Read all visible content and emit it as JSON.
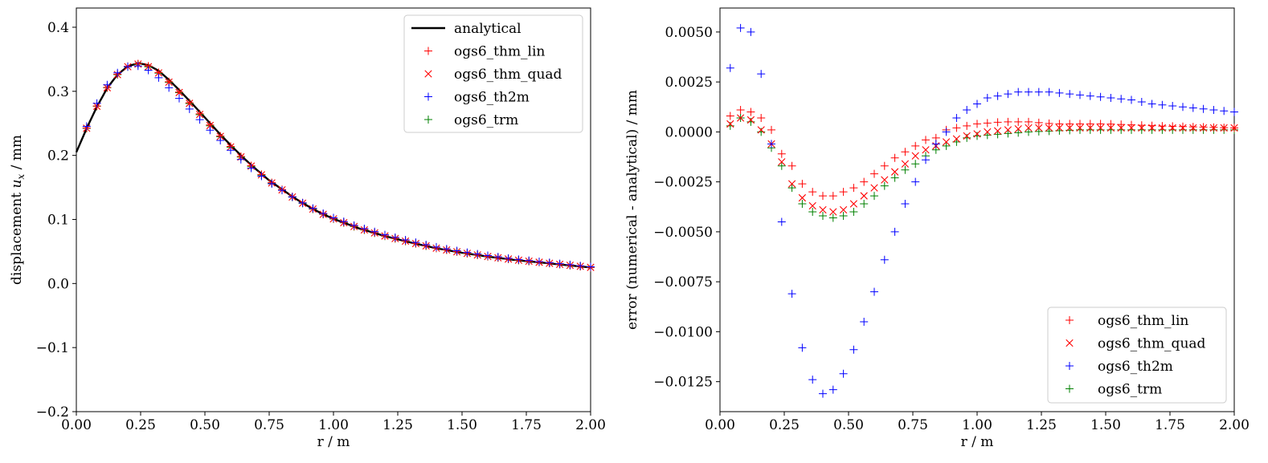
{
  "chart_data": [
    {
      "type": "scatter",
      "xlabel": "r / m",
      "ylabel_prefix": "displacement ",
      "ylabel_var": "u",
      "ylabel_sub": "x",
      "ylabel_suffix": " / mm",
      "xlim": [
        0,
        2
      ],
      "ylim": [
        -0.2,
        0.43
      ],
      "xticks": [
        0,
        0.25,
        0.5,
        0.75,
        1.0,
        1.25,
        1.5,
        1.75,
        2.0
      ],
      "xtick_labels": [
        "0.00",
        "0.25",
        "0.50",
        "0.75",
        "1.00",
        "1.25",
        "1.50",
        "1.75",
        "2.00"
      ],
      "yticks": [
        -0.2,
        -0.1,
        0.0,
        0.1,
        0.2,
        0.3,
        0.4
      ],
      "ytick_labels": [
        "−0.2",
        "−0.1",
        "0.0",
        "0.1",
        "0.2",
        "0.3",
        "0.4"
      ],
      "legend_position": "top-right",
      "series": [
        {
          "name": "analytical",
          "kind": "line",
          "color": "#000000"
        },
        {
          "name": "ogs6_thm_lin",
          "kind": "plus",
          "color": "#ff0000"
        },
        {
          "name": "ogs6_thm_quad",
          "kind": "cross",
          "color": "#ff0000"
        },
        {
          "name": "ogs6_th2m",
          "kind": "plus",
          "color": "#0000ff"
        },
        {
          "name": "ogs6_trm",
          "kind": "plus",
          "color": "#008000"
        }
      ]
    },
    {
      "type": "scatter",
      "xlabel": "r / m",
      "ylabel": "error (numerical - analytical) / mm",
      "xlim": [
        0,
        2
      ],
      "ylim": [
        -0.014,
        0.0062
      ],
      "xticks": [
        0,
        0.25,
        0.5,
        0.75,
        1.0,
        1.25,
        1.5,
        1.75,
        2.0
      ],
      "xtick_labels": [
        "0.00",
        "0.25",
        "0.50",
        "0.75",
        "1.00",
        "1.25",
        "1.50",
        "1.75",
        "2.00"
      ],
      "yticks": [
        -0.0125,
        -0.01,
        -0.0075,
        -0.005,
        -0.0025,
        0,
        0.0025,
        0.005
      ],
      "ytick_labels": [
        "−0.0125",
        "−0.0100",
        "−0.0075",
        "−0.0050",
        "−0.0025",
        "0.0000",
        "0.0025",
        "0.0050"
      ],
      "legend_position": "lower-right",
      "series": [
        {
          "name": "ogs6_thm_lin",
          "kind": "plus",
          "color": "#ff0000"
        },
        {
          "name": "ogs6_thm_quad",
          "kind": "cross",
          "color": "#ff0000"
        },
        {
          "name": "ogs6_th2m",
          "kind": "plus",
          "color": "#0000ff"
        },
        {
          "name": "ogs6_trm",
          "kind": "plus",
          "color": "#008000"
        }
      ]
    }
  ]
}
